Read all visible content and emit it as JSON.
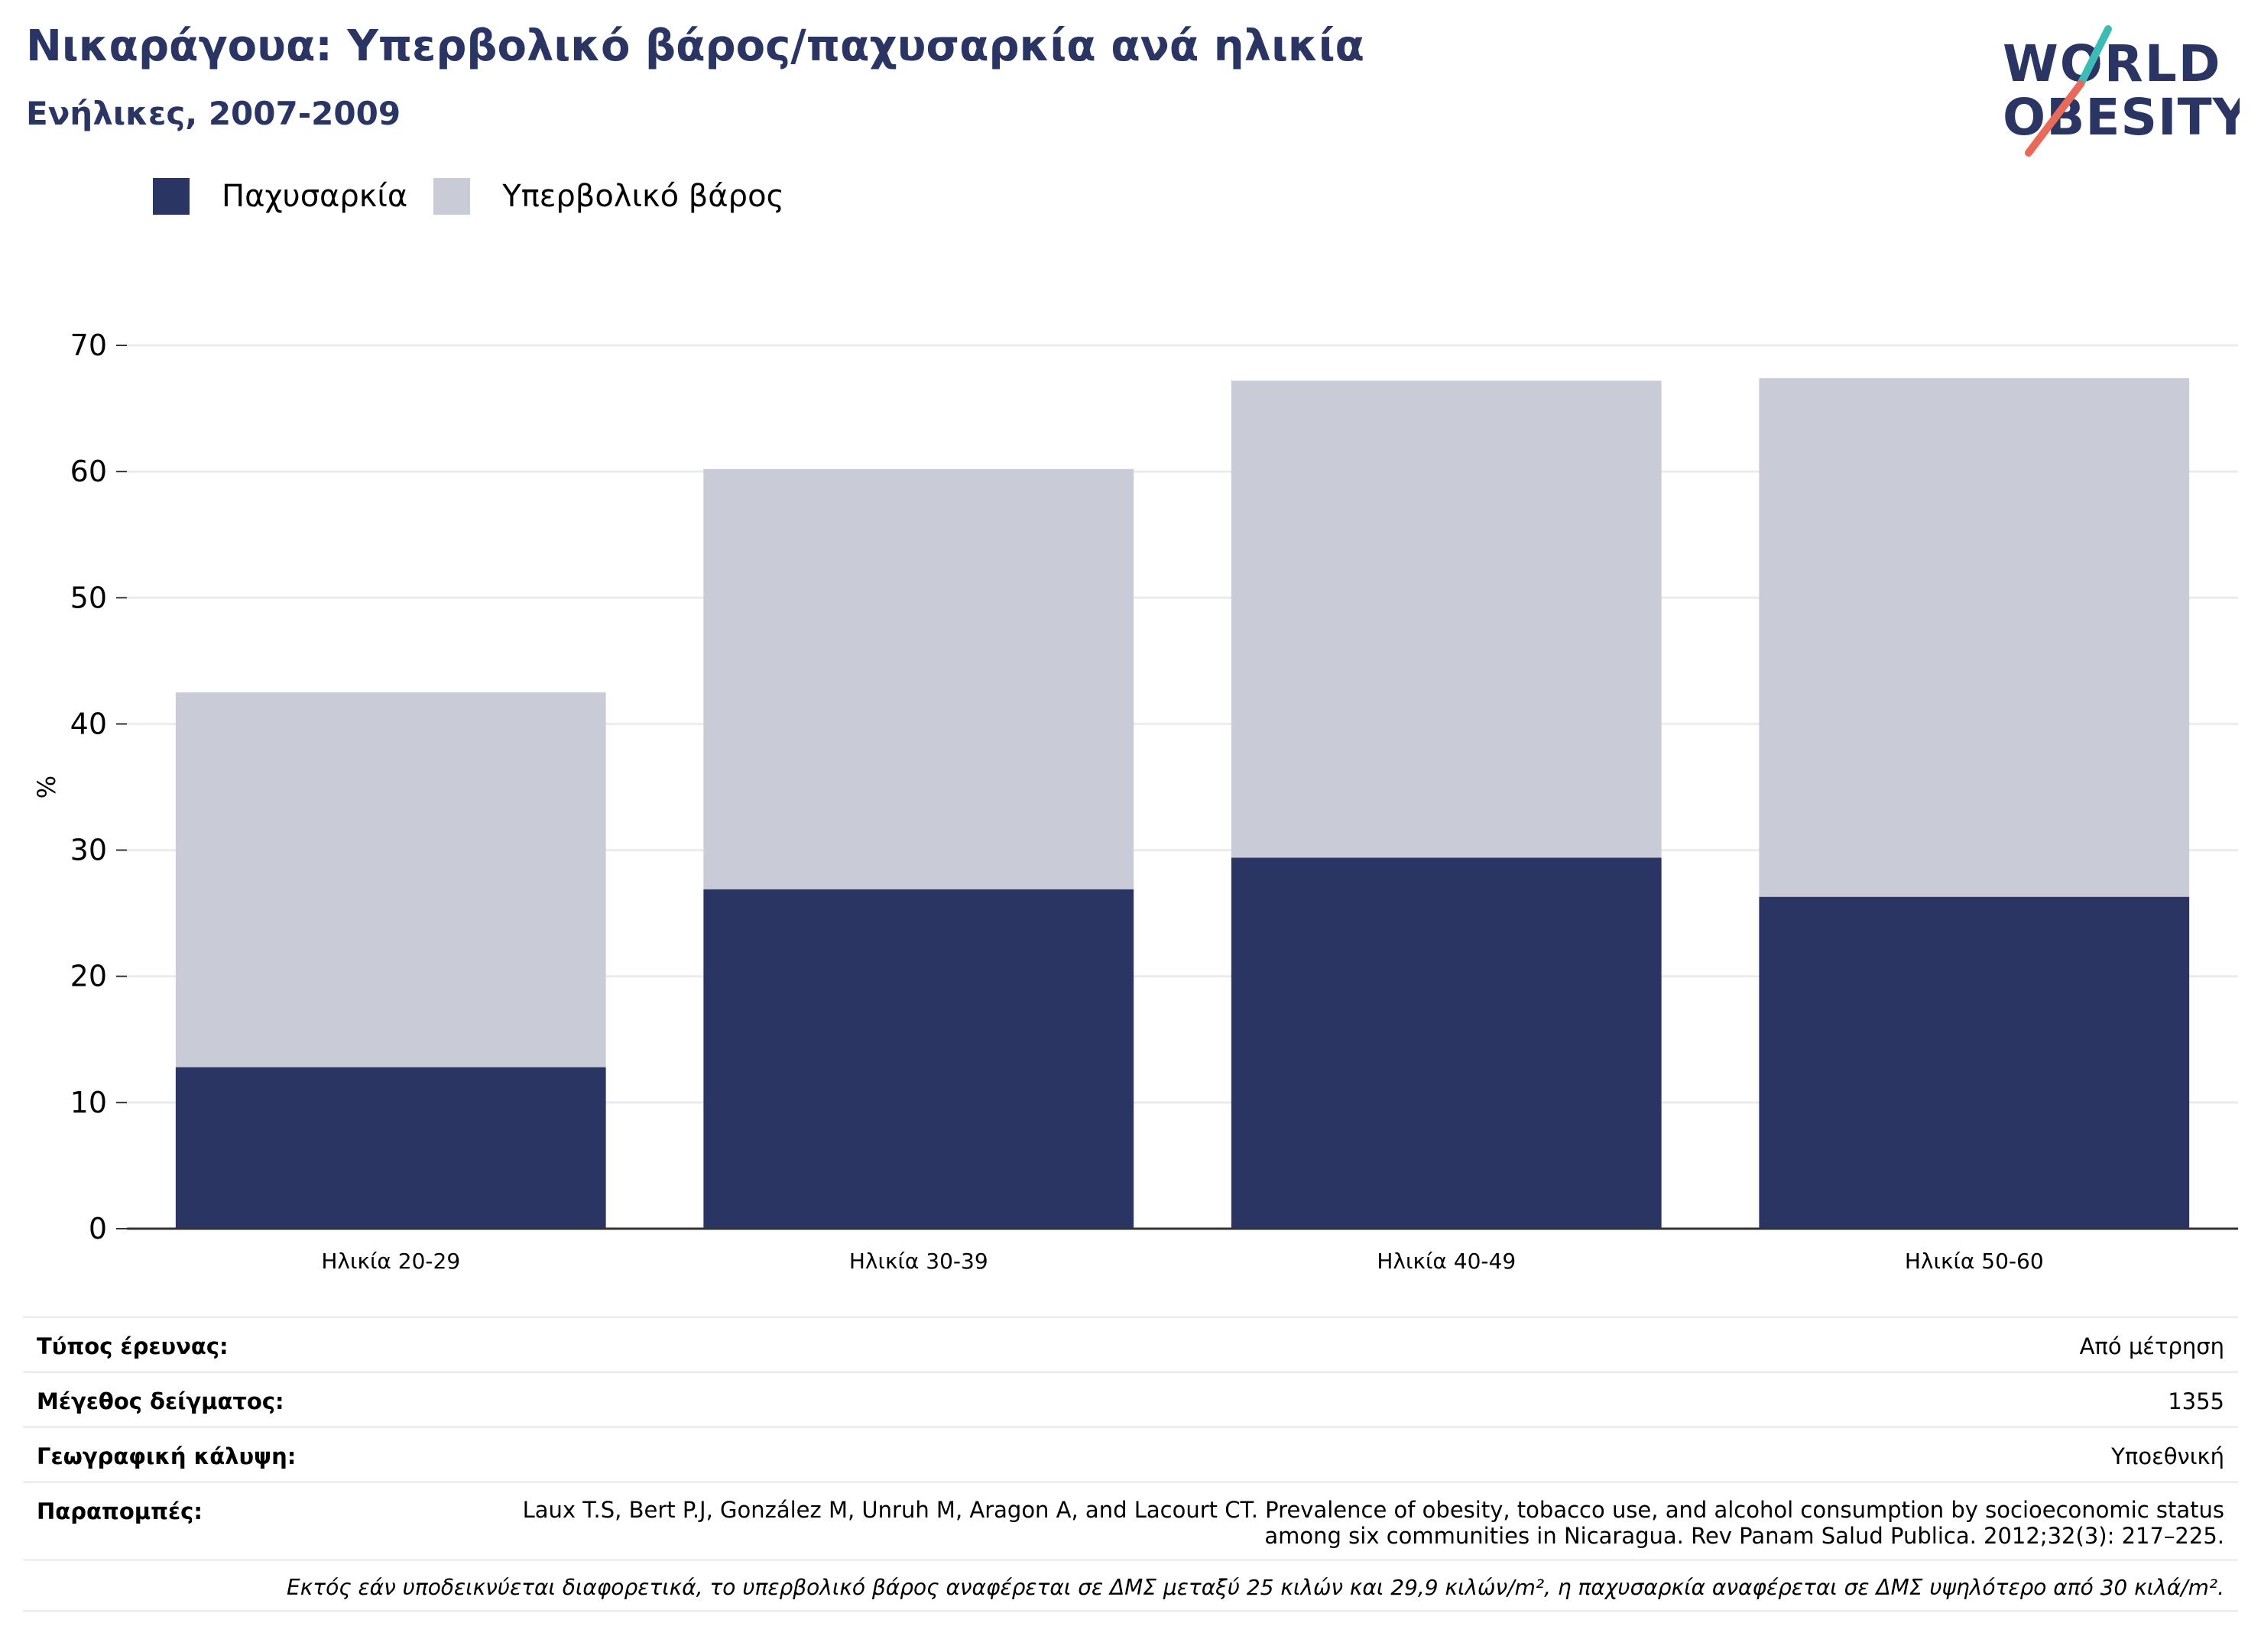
{
  "header": {
    "title": "Νικαράγουα: Υπερβολικό βάρος/παχυσαρκία ανά ηλικία",
    "subtitle": "Ενήλικες, 2007-2009"
  },
  "logo": {
    "line1": "WORLD",
    "line2": "OBESITY",
    "colors": {
      "text": "#2a3563",
      "slash_top": "#3cbcb4",
      "slash_bottom": "#e86a5a"
    }
  },
  "legend": [
    {
      "label": "Παχυσαρκία",
      "color": "#2a3563"
    },
    {
      "label": "Υπερβολικό βάρος",
      "color": "#c9cbd7"
    }
  ],
  "chart_data": {
    "type": "bar",
    "stacked": true,
    "title": "Νικαράγουα: Υπερβολικό βάρος/παχυσαρκία ανά ηλικία",
    "subtitle": "Ενήλικες, 2007-2009",
    "xlabel": "",
    "ylabel": "%",
    "ylim": [
      0,
      70
    ],
    "yticks": [
      0,
      10,
      20,
      30,
      40,
      50,
      60,
      70
    ],
    "grid": true,
    "legend_position": "top-left",
    "categories": [
      "Ηλικία 20-29",
      "Ηλικία 30-39",
      "Ηλικία 40-49",
      "Ηλικία 50-60"
    ],
    "series": [
      {
        "name": "Παχυσαρκία",
        "color": "#2a3563",
        "values": [
          12.8,
          26.9,
          29.4,
          26.3
        ]
      },
      {
        "name": "Υπερβολικό βάρος",
        "color": "#c9cbd7",
        "values": [
          29.7,
          33.3,
          37.8,
          41.1
        ]
      }
    ]
  },
  "info": {
    "rows": [
      {
        "label": "Τύπος έρευνας:",
        "value": "Από μέτρηση"
      },
      {
        "label": "Μέγεθος δείγματος:",
        "value": "1355"
      },
      {
        "label": "Γεωγραφική κάλυψη:",
        "value": "Υποεθνική"
      },
      {
        "label": "Παραπομπές:",
        "value": "Laux T.S, Bert P.J, González M, Unruh M, Aragon A, and Lacourt CT. Prevalence of obesity, tobacco use, and alcohol consumption by socioeconomic status among six communities in Nicaragua. Rev Panam Salud Publica. 2012;32(3): 217–225."
      }
    ],
    "note": "Εκτός εάν υποδεικνύεται διαφορετικά, το υπερβολικό βάρος αναφέρεται σε ΔΜΣ μεταξύ 25 κιλών και 29,9 κιλών/m², η παχυσαρκία αναφέρεται σε ΔΜΣ υψηλότερο από 30 κιλά/m²."
  }
}
